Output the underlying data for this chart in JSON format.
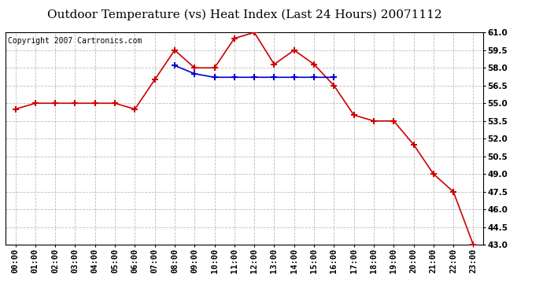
{
  "title": "Outdoor Temperature (vs) Heat Index (Last 24 Hours) 20071112",
  "copyright_text": "Copyright 2007 Cartronics.com",
  "hours": [
    "00:00",
    "01:00",
    "02:00",
    "03:00",
    "04:00",
    "05:00",
    "06:00",
    "07:00",
    "08:00",
    "09:00",
    "10:00",
    "11:00",
    "12:00",
    "13:00",
    "14:00",
    "15:00",
    "16:00",
    "17:00",
    "18:00",
    "19:00",
    "20:00",
    "21:00",
    "22:00",
    "23:00"
  ],
  "temp": [
    54.5,
    55.0,
    55.0,
    55.0,
    55.0,
    55.0,
    54.5,
    57.0,
    59.5,
    58.0,
    58.0,
    60.5,
    61.0,
    58.3,
    59.5,
    58.3,
    56.5,
    54.0,
    53.5,
    53.5,
    51.5,
    49.0,
    47.5,
    43.0
  ],
  "heat_index": [
    null,
    null,
    null,
    null,
    null,
    null,
    null,
    null,
    58.2,
    57.5,
    57.2,
    57.2,
    57.2,
    57.2,
    57.2,
    57.2,
    57.2,
    null,
    null,
    null,
    null,
    null,
    null,
    null
  ],
  "temp_color": "#cc0000",
  "heat_index_color": "#0000cc",
  "marker": "+",
  "marker_size": 6,
  "marker_linewidth": 1.5,
  "line_width": 1.2,
  "ylim": [
    43.0,
    61.0
  ],
  "yticks": [
    43.0,
    44.5,
    46.0,
    47.5,
    49.0,
    50.5,
    52.0,
    53.5,
    55.0,
    56.5,
    58.0,
    59.5,
    61.0
  ],
  "background_color": "#ffffff",
  "plot_bg_color": "#ffffff",
  "grid_color": "#aaaaaa",
  "title_fontsize": 11,
  "copyright_fontsize": 7,
  "tick_fontsize": 7.5
}
